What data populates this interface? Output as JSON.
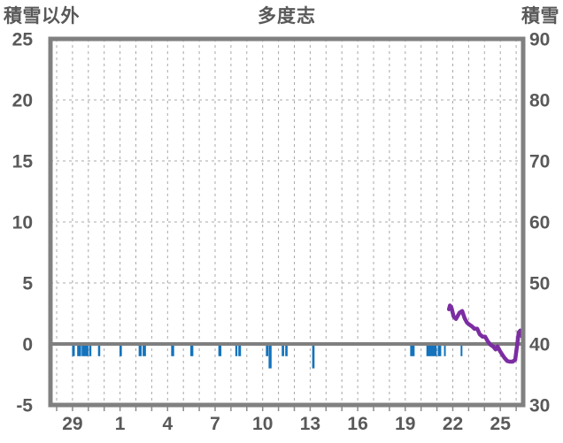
{
  "colors": {
    "background": "#ffffff",
    "text": "#595959",
    "border": "#808080",
    "grid": "#a8a8a8",
    "zero_line": "#7f7f7f",
    "tick_stub": "#8a8a8a",
    "bar_blue": "#1473bc",
    "line_purple": "#7c2da2"
  },
  "chart_data": {
    "type": "mixed",
    "title": "多度志",
    "left_axis": {
      "title": "積雪以外",
      "ticks": [
        25,
        20,
        15,
        10,
        5,
        0,
        -5
      ],
      "range": [
        -5,
        25
      ],
      "grid_values": [
        20,
        15,
        10,
        5
      ],
      "zero_value": 0
    },
    "right_axis": {
      "title": "積雪",
      "ticks": [
        90,
        80,
        70,
        60,
        50,
        40,
        30
      ],
      "range": [
        30,
        90
      ]
    },
    "x_axis": {
      "tick_labels": [
        "29",
        "1",
        "4",
        "7",
        "10",
        "13",
        "16",
        "19",
        "22",
        "25"
      ],
      "tick_days": [
        1,
        4,
        7,
        10,
        13,
        16,
        19,
        22,
        25,
        28
      ],
      "gridline_day_start": 0,
      "gridline_day_end": 29,
      "domain": [
        -0.39,
        29.44
      ],
      "grid_on": true
    },
    "series": [
      {
        "name": "積雪以外",
        "type": "bar",
        "axis": "left",
        "color": "#1473bc",
        "points": [
          {
            "d": 1.06,
            "v": -1,
            "w": 0.17
          },
          {
            "d": 1.42,
            "v": -1,
            "w": 0.25
          },
          {
            "d": 1.79,
            "v": -1,
            "w": 0.43
          },
          {
            "d": 2.12,
            "v": -1,
            "w": 0.14
          },
          {
            "d": 2.68,
            "v": -1,
            "w": 0.14
          },
          {
            "d": 4.04,
            "v": -1,
            "w": 0.15
          },
          {
            "d": 5.27,
            "v": -1,
            "w": 0.19
          },
          {
            "d": 5.53,
            "v": -1,
            "w": 0.21
          },
          {
            "d": 7.32,
            "v": -1,
            "w": 0.19
          },
          {
            "d": 8.53,
            "v": -1,
            "w": 0.19
          },
          {
            "d": 10.3,
            "v": -1,
            "w": 0.19
          },
          {
            "d": 11.34,
            "v": -1,
            "w": 0.13
          },
          {
            "d": 11.55,
            "v": -1,
            "w": 0.17
          },
          {
            "d": 13.28,
            "v": -1,
            "w": 0.15
          },
          {
            "d": 13.47,
            "v": -2,
            "w": 0.19
          },
          {
            "d": 14.28,
            "v": -1,
            "w": 0.15
          },
          {
            "d": 14.5,
            "v": -1,
            "w": 0.15
          },
          {
            "d": 16.2,
            "v": -2,
            "w": 0.15
          },
          {
            "d": 22.45,
            "v": -1,
            "w": 0.28
          },
          {
            "d": 23.66,
            "v": -1,
            "w": 0.65
          },
          {
            "d": 24.16,
            "v": -1,
            "w": 0.22
          },
          {
            "d": 24.5,
            "v": -1,
            "w": 0.09
          },
          {
            "d": 25.55,
            "v": -1,
            "w": 0.1
          }
        ]
      },
      {
        "name": "積雪",
        "type": "line",
        "axis": "right",
        "color": "#7c2da2",
        "points": [
          [
            24.76,
            45.7
          ],
          [
            24.82,
            46.3
          ],
          [
            24.92,
            45.9
          ],
          [
            25.05,
            44.5
          ],
          [
            25.2,
            44.1
          ],
          [
            25.42,
            45.1
          ],
          [
            25.59,
            45.4
          ],
          [
            25.75,
            44.2
          ],
          [
            25.9,
            43.5
          ],
          [
            26.03,
            43.2
          ],
          [
            26.2,
            42.9
          ],
          [
            26.37,
            42.5
          ],
          [
            26.54,
            42.5
          ],
          [
            26.7,
            41.6
          ],
          [
            26.87,
            41.2
          ],
          [
            27.04,
            41.2
          ],
          [
            27.21,
            40.4
          ],
          [
            27.37,
            39.9
          ],
          [
            27.54,
            39.6
          ],
          [
            27.71,
            39.1
          ],
          [
            27.82,
            39.6
          ],
          [
            27.99,
            38.8
          ],
          [
            28.16,
            38.1
          ],
          [
            28.27,
            37.7
          ],
          [
            28.44,
            37.2
          ],
          [
            28.6,
            37.1
          ],
          [
            28.77,
            37.1
          ],
          [
            28.94,
            37.4
          ],
          [
            29.05,
            39.6
          ],
          [
            29.16,
            41.9
          ],
          [
            29.27,
            42.2
          ],
          [
            29.38,
            41.2
          ]
        ]
      }
    ]
  }
}
